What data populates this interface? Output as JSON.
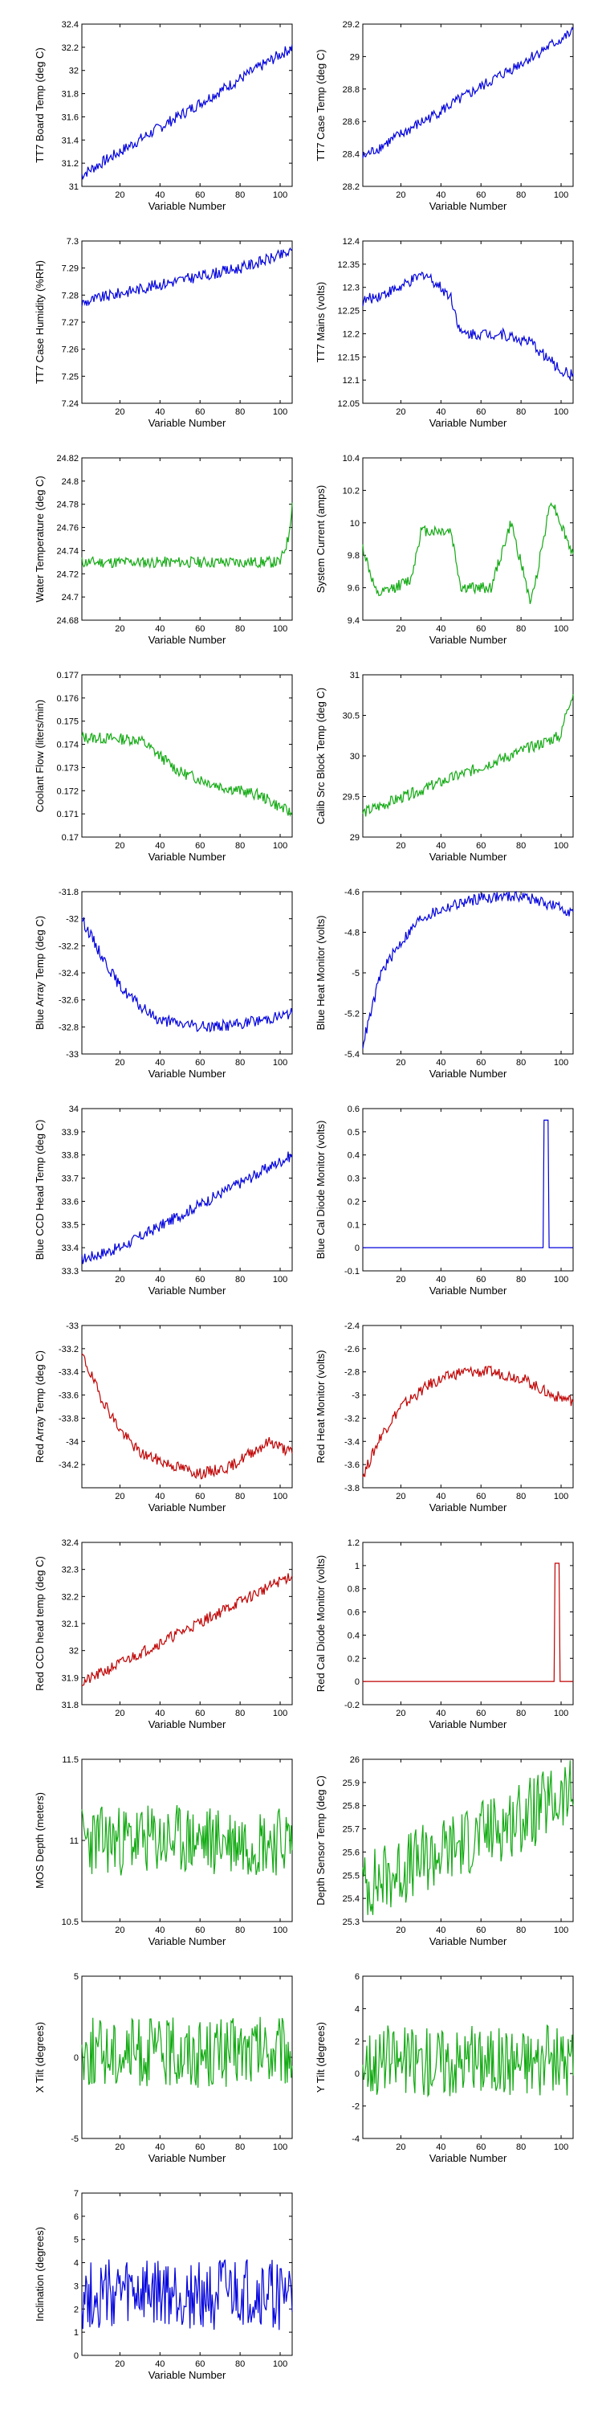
{
  "chart_data": [
    {
      "type": "line",
      "color": "#0000dd",
      "xlabel": "Variable Number",
      "ylabel": "TT7 Board Temp (deg C)",
      "xlim": [
        1,
        106
      ],
      "ylim": [
        31,
        32.4
      ],
      "xticks": [
        20,
        40,
        60,
        80,
        100
      ],
      "yticks": [
        31,
        31.2,
        31.4,
        31.6,
        31.8,
        32,
        32.2,
        32.4
      ],
      "ytick_labels": [
        "31",
        "31.2",
        "31.4",
        "31.6",
        "31.8",
        "32",
        "32.2",
        "32.4"
      ],
      "series_profile": {
        "x": [
          1,
          106
        ],
        "y": [
          31.1,
          32.2
        ]
      }
    },
    {
      "type": "line",
      "color": "#0000dd",
      "xlabel": "Variable Number",
      "ylabel": "TT7 Case Temp (deg C)",
      "xlim": [
        1,
        106
      ],
      "ylim": [
        28.2,
        29.2
      ],
      "xticks": [
        20,
        40,
        60,
        80,
        100
      ],
      "yticks": [
        28.2,
        28.4,
        28.6,
        28.8,
        29,
        29.2
      ],
      "ytick_labels": [
        "28.2",
        "28.4",
        "28.6",
        "28.8",
        "29",
        "29.2"
      ],
      "series_profile": {
        "x": [
          1,
          106
        ],
        "y": [
          28.38,
          29.15
        ]
      }
    },
    {
      "type": "line",
      "color": "#0000dd",
      "xlabel": "Variable Number",
      "ylabel": "TT7 Case Humidity (%RH)",
      "xlim": [
        1,
        106
      ],
      "ylim": [
        7.24,
        7.3
      ],
      "xticks": [
        20,
        40,
        60,
        80,
        100
      ],
      "yticks": [
        7.24,
        7.25,
        7.26,
        7.27,
        7.28,
        7.29,
        7.3
      ],
      "ytick_labels": [
        "7.24",
        "7.25",
        "7.26",
        "7.27",
        "7.28",
        "7.29",
        "7.3"
      ],
      "series_profile": {
        "x": [
          1,
          10,
          40,
          60,
          80,
          106
        ],
        "y": [
          7.277,
          7.279,
          7.284,
          7.287,
          7.29,
          7.296
        ]
      }
    },
    {
      "type": "line",
      "color": "#0000dd",
      "xlabel": "Variable Number",
      "ylabel": "TT7 Mains (volts)",
      "xlim": [
        1,
        106
      ],
      "ylim": [
        12.05,
        12.4
      ],
      "xticks": [
        20,
        40,
        60,
        80,
        100
      ],
      "yticks": [
        12.05,
        12.1,
        12.15,
        12.2,
        12.25,
        12.3,
        12.35,
        12.4
      ],
      "ytick_labels": [
        "12.05",
        "12.1",
        "12.15",
        "12.2",
        "12.25",
        "12.3",
        "12.35",
        "12.4"
      ],
      "series_profile": {
        "x": [
          1,
          20,
          32,
          45,
          50,
          70,
          85,
          100,
          106
        ],
        "y": [
          12.27,
          12.3,
          12.33,
          12.28,
          12.2,
          12.2,
          12.18,
          12.12,
          12.11
        ]
      }
    },
    {
      "type": "line",
      "color": "#11aa11",
      "xlabel": "Variable Number",
      "ylabel": "Water Temperature (deg C)",
      "xlim": [
        1,
        106
      ],
      "ylim": [
        24.68,
        24.82
      ],
      "xticks": [
        20,
        40,
        60,
        80,
        100
      ],
      "yticks": [
        24.68,
        24.7,
        24.72,
        24.74,
        24.76,
        24.78,
        24.8,
        24.82
      ],
      "ytick_labels": [
        "24.68",
        "24.7",
        "24.72",
        "24.74",
        "24.76",
        "24.78",
        "24.8",
        "24.82"
      ],
      "series_profile": {
        "x": [
          1,
          50,
          100,
          104,
          106
        ],
        "y": [
          24.73,
          24.73,
          24.73,
          24.75,
          24.78
        ]
      }
    },
    {
      "type": "line",
      "color": "#11aa11",
      "xlabel": "Variable Number",
      "ylabel": "System Current (amps)",
      "xlim": [
        1,
        106
      ],
      "ylim": [
        9.4,
        10.4
      ],
      "xticks": [
        20,
        40,
        60,
        80,
        100
      ],
      "yticks": [
        9.4,
        9.6,
        9.8,
        10,
        10.2,
        10.4
      ],
      "ytick_labels": [
        "9.4",
        "9.6",
        "9.8",
        "10",
        "10.2",
        "10.4"
      ],
      "series_profile": {
        "x": [
          1,
          8,
          25,
          30,
          45,
          50,
          65,
          75,
          85,
          95,
          106
        ],
        "y": [
          9.85,
          9.55,
          9.65,
          9.95,
          9.95,
          9.6,
          9.6,
          10,
          9.5,
          10.15,
          9.8
        ]
      }
    },
    {
      "type": "line",
      "color": "#11aa11",
      "xlabel": "Variable Number",
      "ylabel": "Coolant Flow (liters/min)",
      "xlim": [
        1,
        106
      ],
      "ylim": [
        0.17,
        0.177
      ],
      "xticks": [
        20,
        40,
        60,
        80,
        100
      ],
      "yticks": [
        0.17,
        0.171,
        0.172,
        0.173,
        0.174,
        0.175,
        0.176,
        0.177
      ],
      "ytick_labels": [
        "0.17",
        "0.171",
        "0.172",
        "0.173",
        "0.174",
        "0.175",
        "0.176",
        "0.177"
      ],
      "series_profile": {
        "x": [
          1,
          30,
          50,
          70,
          90,
          106
        ],
        "y": [
          0.1743,
          0.1742,
          0.1728,
          0.1722,
          0.1718,
          0.171
        ]
      }
    },
    {
      "type": "line",
      "color": "#11aa11",
      "xlabel": "Variable Number",
      "ylabel": "Calib Src Block Temp (deg C)",
      "xlim": [
        1,
        106
      ],
      "ylim": [
        29,
        31
      ],
      "xticks": [
        20,
        40,
        60,
        80,
        100
      ],
      "yticks": [
        29,
        29.5,
        30,
        30.5,
        31
      ],
      "ytick_labels": [
        "29",
        "29.5",
        "30",
        "30.5",
        "31"
      ],
      "series_profile": {
        "x": [
          1,
          100,
          103,
          106
        ],
        "y": [
          29.3,
          30.25,
          30.6,
          30.75
        ]
      }
    },
    {
      "type": "line",
      "color": "#0000dd",
      "xlabel": "Variable Number",
      "ylabel": "Blue Array Temp (deg C)",
      "xlim": [
        1,
        106
      ],
      "ylim": [
        -33,
        -31.8
      ],
      "xticks": [
        20,
        40,
        60,
        80,
        100
      ],
      "yticks": [
        -33,
        -32.8,
        -32.6,
        -32.4,
        -32.2,
        -32,
        -31.8
      ],
      "ytick_labels": [
        "-33",
        "-32.8",
        "-32.6",
        "-32.4",
        "-32.2",
        "-32",
        "-31.8"
      ],
      "series_profile": {
        "x": [
          1,
          10,
          20,
          30,
          40,
          60,
          80,
          106
        ],
        "y": [
          -32,
          -32.25,
          -32.5,
          -32.65,
          -32.75,
          -32.8,
          -32.78,
          -32.7
        ]
      }
    },
    {
      "type": "line",
      "color": "#0000dd",
      "xlabel": "Variable Number",
      "ylabel": "Blue Heat Monitor (volts)",
      "xlim": [
        1,
        106
      ],
      "ylim": [
        -5.4,
        -4.6
      ],
      "xticks": [
        20,
        40,
        60,
        80,
        100
      ],
      "yticks": [
        -5.4,
        -5.2,
        -5,
        -4.8,
        -4.6
      ],
      "ytick_labels": [
        "-5.4",
        "-5.2",
        "-5",
        "-4.8",
        "-4.6"
      ],
      "series_profile": {
        "x": [
          1,
          5,
          10,
          20,
          30,
          45,
          60,
          80,
          106
        ],
        "y": [
          -5.35,
          -5.2,
          -5.0,
          -4.85,
          -4.73,
          -4.67,
          -4.63,
          -4.62,
          -4.7
        ]
      }
    },
    {
      "type": "line",
      "color": "#0000dd",
      "xlabel": "Variable Number",
      "ylabel": "Blue CCD Head Temp (deg C)",
      "xlim": [
        1,
        106
      ],
      "ylim": [
        33.3,
        34
      ],
      "xticks": [
        20,
        40,
        60,
        80,
        100
      ],
      "yticks": [
        33.3,
        33.4,
        33.5,
        33.6,
        33.7,
        33.8,
        33.9,
        34
      ],
      "ytick_labels": [
        "33.3",
        "33.4",
        "33.5",
        "33.6",
        "33.7",
        "33.8",
        "33.9",
        "34"
      ],
      "series_profile": {
        "x": [
          1,
          20,
          106
        ],
        "y": [
          33.35,
          33.4,
          33.8
        ]
      }
    },
    {
      "type": "line",
      "color": "#0000dd",
      "xlabel": "Variable Number",
      "ylabel": "Blue Cal Diode Monitor (volts)",
      "xlim": [
        1,
        106
      ],
      "ylim": [
        -0.1,
        0.6
      ],
      "xticks": [
        20,
        40,
        60,
        80,
        100
      ],
      "yticks": [
        -0.1,
        0,
        0.1,
        0.2,
        0.3,
        0.4,
        0.5,
        0.6
      ],
      "ytick_labels": [
        "-0.1",
        "0",
        "0.1",
        "0.2",
        "0.3",
        "0.4",
        "0.5",
        "0.6"
      ],
      "series_profile": {
        "x": [
          1,
          91,
          91.5,
          93.5,
          94,
          106
        ],
        "y": [
          0,
          0,
          0.55,
          0.55,
          0,
          0
        ]
      }
    },
    {
      "type": "line",
      "color": "#c00000",
      "xlabel": "Variable Number",
      "ylabel": "Red Array Temp (deg C)",
      "xlim": [
        1,
        106
      ],
      "ylim": [
        -34.4,
        -33
      ],
      "xticks": [
        20,
        40,
        60,
        80,
        100
      ],
      "yticks": [
        -34.4,
        -34.2,
        -34,
        -33.8,
        -33.6,
        -33.4,
        -33.2,
        -33
      ],
      "ytick_labels": [
        "",
        "-34.2",
        "-34",
        "-33.8",
        "-33.6",
        "-33.4",
        "-33.2",
        "-33"
      ],
      "series_profile": {
        "x": [
          1,
          10,
          20,
          30,
          45,
          60,
          75,
          85,
          95,
          106
        ],
        "y": [
          -33.25,
          -33.6,
          -33.9,
          -34.1,
          -34.2,
          -34.28,
          -34.22,
          -34.1,
          -34.0,
          -34.1
        ]
      }
    },
    {
      "type": "line",
      "color": "#c00000",
      "xlabel": "Variable Number",
      "ylabel": "Red Heat Monitor (volts)",
      "xlim": [
        1,
        106
      ],
      "ylim": [
        -3.8,
        -2.4
      ],
      "xticks": [
        20,
        40,
        60,
        80,
        100
      ],
      "yticks": [
        -3.8,
        -3.6,
        -3.4,
        -3.2,
        -3,
        -2.8,
        -2.6,
        -2.4
      ],
      "ytick_labels": [
        "-3.8",
        "-3.6",
        "-3.4",
        "-3.2",
        "-3",
        "-2.8",
        "-2.6",
        "-2.4"
      ],
      "series_profile": {
        "x": [
          1,
          10,
          20,
          35,
          50,
          65,
          80,
          95,
          106
        ],
        "y": [
          -3.7,
          -3.35,
          -3.1,
          -2.9,
          -2.8,
          -2.8,
          -2.85,
          -3.0,
          -3.05
        ]
      }
    },
    {
      "type": "line",
      "color": "#c00000",
      "xlabel": "Variable Number",
      "ylabel": "Red CCD head temp (deg C)",
      "xlim": [
        1,
        106
      ],
      "ylim": [
        31.8,
        32.4
      ],
      "xticks": [
        20,
        40,
        60,
        80,
        100
      ],
      "yticks": [
        31.8,
        31.9,
        32,
        32.1,
        32.2,
        32.3,
        32.4
      ],
      "ytick_labels": [
        "31.8",
        "31.9",
        "32",
        "32.1",
        "32.2",
        "32.3",
        "32.4"
      ],
      "series_profile": {
        "x": [
          1,
          106
        ],
        "y": [
          31.88,
          32.28
        ]
      }
    },
    {
      "type": "line",
      "color": "#c00000",
      "xlabel": "Variable Number",
      "ylabel": "Red Cal Diode Monitor (volts)",
      "xlim": [
        1,
        106
      ],
      "ylim": [
        -0.2,
        1.2
      ],
      "xticks": [
        20,
        40,
        60,
        80,
        100
      ],
      "yticks": [
        -0.2,
        0,
        0.2,
        0.4,
        0.6,
        0.8,
        1,
        1.2
      ],
      "ytick_labels": [
        "-0.2",
        "0",
        "0.2",
        "0.4",
        "0.6",
        "0.8",
        "1",
        "1.2"
      ],
      "series_profile": {
        "x": [
          1,
          96.5,
          97,
          99,
          99.5,
          106
        ],
        "y": [
          0,
          0,
          1.02,
          1.02,
          0,
          0
        ]
      }
    },
    {
      "type": "line",
      "color": "#11aa11",
      "xlabel": "Variable Number",
      "ylabel": "MOS Depth (meters)",
      "xlim": [
        1,
        106
      ],
      "ylim": [
        10.5,
        11.5
      ],
      "xticks": [
        20,
        40,
        60,
        80,
        100
      ],
      "yticks": [
        10.5,
        11,
        11.5
      ],
      "ytick_labels": [
        "10.5",
        "11",
        "11.5"
      ],
      "series_profile": {
        "x": [
          1,
          106
        ],
        "y": [
          11.0,
          11.0
        ]
      }
    },
    {
      "type": "line",
      "color": "#11aa11",
      "xlabel": "Variable Number",
      "ylabel": "Depth Sensor Temp (deg C)",
      "xlim": [
        1,
        106
      ],
      "ylim": [
        25.3,
        26
      ],
      "xticks": [
        20,
        40,
        60,
        80,
        100
      ],
      "yticks": [
        25.3,
        25.4,
        25.5,
        25.6,
        25.7,
        25.8,
        25.9,
        26
      ],
      "ytick_labels": [
        "25.3",
        "25.4",
        "25.5",
        "25.6",
        "25.7",
        "25.8",
        "25.9",
        "26"
      ],
      "series_profile": {
        "x": [
          1,
          106
        ],
        "y": [
          25.45,
          25.85
        ]
      }
    },
    {
      "type": "line",
      "color": "#11aa11",
      "xlabel": "Variable Number",
      "ylabel": "X Tilt (degrees)",
      "xlim": [
        1,
        106
      ],
      "ylim": [
        -5,
        5
      ],
      "xticks": [
        20,
        40,
        60,
        80,
        100
      ],
      "yticks": [
        -5,
        0,
        5
      ],
      "ytick_labels": [
        "-5",
        "0",
        "5"
      ],
      "series_profile": {
        "x": [
          1,
          106
        ],
        "y": [
          0.3,
          0.3
        ]
      }
    },
    {
      "type": "line",
      "color": "#11aa11",
      "xlabel": "Variable Number",
      "ylabel": "Y Tilt (degrees)",
      "xlim": [
        1,
        106
      ],
      "ylim": [
        -4,
        6
      ],
      "xticks": [
        20,
        40,
        60,
        80,
        100
      ],
      "yticks": [
        -4,
        -2,
        0,
        2,
        4,
        6
      ],
      "ytick_labels": [
        "-4",
        "-2",
        "0",
        "2",
        "4",
        "6"
      ],
      "series_profile": {
        "x": [
          1,
          106
        ],
        "y": [
          0.8,
          0.8
        ]
      }
    },
    {
      "type": "line",
      "color": "#0000dd",
      "xlabel": "Variable Number",
      "ylabel": "Inclination (degrees)",
      "xlim": [
        1,
        106
      ],
      "ylim": [
        0,
        7
      ],
      "xticks": [
        20,
        40,
        60,
        80,
        100
      ],
      "yticks": [
        0,
        1,
        2,
        3,
        4,
        5,
        6,
        7
      ],
      "ytick_labels": [
        "0",
        "1",
        "2",
        "3",
        "4",
        "5",
        "6",
        "7"
      ],
      "series_profile": {
        "x": [
          1,
          106
        ],
        "y": [
          2.6,
          2.6
        ]
      }
    }
  ]
}
